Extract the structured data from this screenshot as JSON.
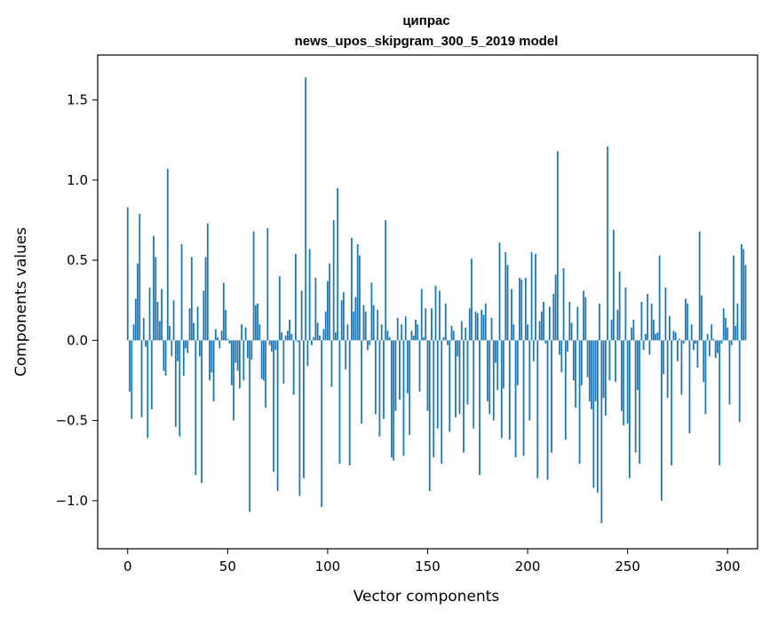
{
  "chart_data": {
    "type": "bar",
    "title": "ципрас",
    "subtitle": "news_upos_skipgram_300_5_2019 model",
    "xlabel": "Vector components",
    "ylabel": "Components values",
    "xlim": [
      -15,
      315
    ],
    "ylim": [
      -1.3,
      1.78
    ],
    "xticks": [
      0,
      50,
      100,
      150,
      200,
      250,
      300
    ],
    "yticks": [
      -1.0,
      -0.5,
      0.0,
      0.5,
      1.0,
      1.5
    ],
    "ytick_labels": [
      "−1.0",
      "−0.5",
      "0.0",
      "0.5",
      "1.0",
      "1.5"
    ],
    "bar_color": "#1f77b4",
    "x_start": 0,
    "values": [
      0.83,
      -0.32,
      -0.49,
      0.1,
      0.26,
      0.48,
      0.79,
      -0.48,
      0.14,
      -0.04,
      -0.61,
      0.33,
      -0.43,
      0.65,
      0.52,
      0.24,
      0.12,
      0.32,
      -0.19,
      -0.22,
      1.07,
      0.09,
      -0.1,
      0.25,
      -0.54,
      -0.13,
      -0.6,
      0.6,
      -0.22,
      -0.05,
      -0.08,
      0.2,
      0.52,
      0.11,
      -0.84,
      0.21,
      -0.1,
      -0.89,
      0.31,
      0.52,
      0.73,
      -0.25,
      -0.2,
      -0.38,
      0.07,
      0.02,
      -0.05,
      0.06,
      0.36,
      0.19,
      0.01,
      -0.02,
      -0.28,
      -0.5,
      -0.14,
      -0.19,
      -0.3,
      0.1,
      -0.25,
      0.08,
      -0.11,
      -1.07,
      -0.12,
      0.68,
      0.22,
      0.23,
      0.1,
      -0.24,
      -0.25,
      -0.42,
      0.7,
      -0.03,
      -0.07,
      -0.82,
      -0.06,
      -0.94,
      0.4,
      0.05,
      -0.27,
      0.03,
      0.06,
      0.13,
      0.04,
      -0.34,
      0.54,
      -0.01,
      -0.97,
      0.31,
      -0.86,
      1.64,
      -0.16,
      0.57,
      -0.03,
      0.02,
      0.39,
      0.11,
      0.03,
      -1.04,
      0.07,
      0.18,
      0.37,
      0.48,
      -0.29,
      0.75,
      0.05,
      0.95,
      -0.77,
      0.25,
      0.3,
      -0.18,
      0.1,
      -0.78,
      0.64,
      0.18,
      0.27,
      0.6,
      0.53,
      -0.52,
      0.22,
      0.18,
      -0.06,
      -0.03,
      0.36,
      0.22,
      -0.46,
      0.19,
      -0.6,
      0.1,
      -0.49,
      0.75,
      0.06,
      0.02,
      -0.73,
      -0.75,
      -0.44,
      0.14,
      -0.37,
      0.1,
      -0.72,
      0.15,
      -0.33,
      -0.59,
      0.06,
      0.03,
      0.13,
      0.1,
      -0.32,
      0.32,
      0.02,
      0.2,
      -0.44,
      -0.94,
      0.2,
      -0.73,
      0.34,
      -0.55,
      0.31,
      -0.77,
      0.02,
      0.23,
      -0.03,
      -0.57,
      0.09,
      0.06,
      -0.48,
      -0.1,
      -0.46,
      0.12,
      -0.7,
      0.08,
      -0.4,
      0.2,
      0.51,
      -0.55,
      0.18,
      0.17,
      -0.84,
      0.19,
      0.16,
      0.23,
      -0.38,
      -0.46,
      0.14,
      -0.5,
      -0.14,
      -0.31,
      0.61,
      -0.61,
      -0.3,
      0.55,
      0.47,
      -0.62,
      0.32,
      0.1,
      -0.73,
      -0.28,
      0.39,
      0.38,
      -0.72,
      0.39,
      0.1,
      -0.5,
      0.55,
      -0.13,
      0.54,
      -0.86,
      0.12,
      0.18,
      0.24,
      -0.02,
      -0.87,
      0.21,
      -0.7,
      0.29,
      0.41,
      1.18,
      -0.09,
      -0.2,
      0.45,
      -0.62,
      -0.07,
      0.24,
      0.11,
      -0.25,
      -0.42,
      0.21,
      -0.77,
      -0.28,
      0.31,
      0.27,
      -0.23,
      -0.38,
      -0.43,
      -0.92,
      -0.38,
      -0.95,
      0.23,
      -1.14,
      -0.36,
      -0.47,
      1.21,
      -0.25,
      0.13,
      0.69,
      -0.26,
      0.19,
      0.43,
      -0.44,
      -0.53,
      0.33,
      -0.52,
      -0.86,
      0.08,
      0.13,
      -0.7,
      -0.31,
      -0.77,
      0.24,
      -0.06,
      0.04,
      0.29,
      -0.09,
      0.23,
      0.13,
      0.04,
      0.05,
      0.53,
      -1.0,
      -0.21,
      0.33,
      -0.36,
      0.15,
      -0.78,
      0.06,
      0.05,
      -0.13,
      0.01,
      -0.34,
      -0.02,
      0.26,
      0.23,
      -0.58,
      0.1,
      -0.06,
      -0.02,
      -0.17,
      0.68,
      0.28,
      -0.26,
      -0.46,
      0.04,
      -0.1,
      0.1,
      0.01,
      -0.11,
      -0.08,
      -0.78,
      -0.02,
      0.2,
      0.14,
      0.08,
      -0.4,
      -0.03,
      0.53,
      0.09,
      0.23,
      -0.51,
      0.6,
      0.57,
      0.47
    ]
  }
}
